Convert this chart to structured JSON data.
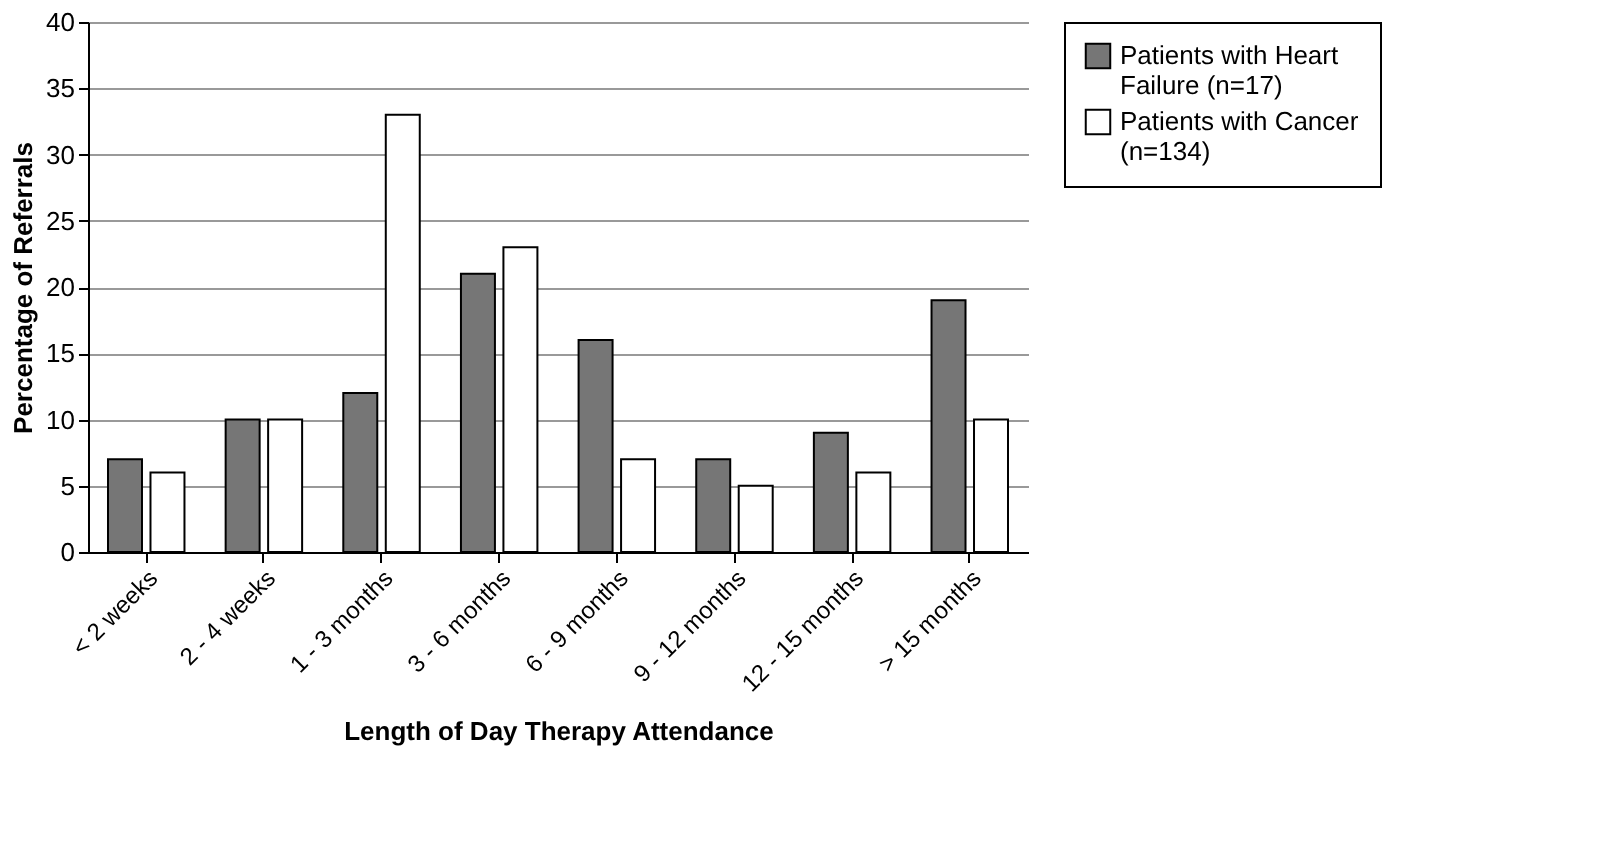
{
  "chart_data": {
    "type": "bar",
    "xlabel": "Length of Day Therapy Attendance",
    "ylabel": "Percentage of Referrals",
    "categories": [
      "< 2 weeks",
      "2 - 4 weeks",
      "1 - 3 months",
      "3 - 6 months",
      "6 - 9 months",
      "9 - 12 months",
      "12 - 15 months",
      "> 15 months"
    ],
    "series": [
      {
        "name": "Patients with Heart Failure (n=17)",
        "color": "#767676",
        "values": [
          7,
          10,
          12,
          21,
          16,
          7,
          9,
          19
        ]
      },
      {
        "name": "Patients with Cancer (n=134)",
        "color": "#ffffff",
        "values": [
          6,
          10,
          33,
          23,
          7,
          5,
          6,
          10
        ]
      }
    ],
    "ylim": [
      0,
      40
    ],
    "yticks": [
      0,
      5,
      10,
      15,
      20,
      25,
      30,
      35,
      40
    ],
    "grid": "y",
    "legend": "right"
  }
}
